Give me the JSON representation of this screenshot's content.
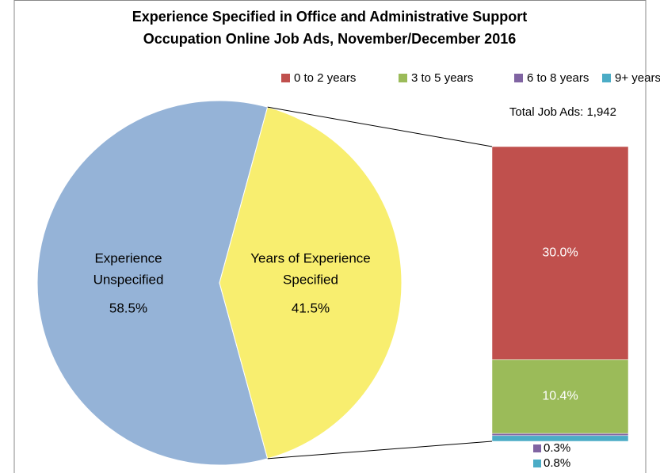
{
  "chart_data": {
    "type": "bar-of-pie",
    "title": [
      "Experience Specified in Office and Administrative Support",
      "Occupation Online Job Ads, November/December 2016"
    ],
    "categories": [
      [
        "Experience",
        "Unspecified"
      ],
      [
        "Years of Experience",
        "Specified"
      ]
    ],
    "values": [
      58.5,
      41.5
    ],
    "value_labels": [
      "58.5%",
      "41.5%"
    ],
    "colors": [
      "#95b3d7",
      "#f8ee6f"
    ],
    "annotation": "Total Job Ads: 1,942",
    "breakdown": {
      "series": [
        {
          "name": "0 to 2 years",
          "color": "#c0504d",
          "values": [
            30.0
          ],
          "value_labels": [
            "30.0%"
          ]
        },
        {
          "name": "3 to 5 years",
          "color": "#9bbb59",
          "values": [
            10.4
          ],
          "value_labels": [
            "10.4%"
          ]
        },
        {
          "name": "6 to 8 years",
          "color": "#8064a2",
          "values": [
            0.3
          ],
          "value_labels": [
            "0.3%"
          ]
        },
        {
          "name": "9+ years",
          "color": "#4bacc6",
          "values": [
            0.8
          ],
          "value_labels": [
            "0.8%"
          ]
        }
      ]
    },
    "legend": "top"
  }
}
